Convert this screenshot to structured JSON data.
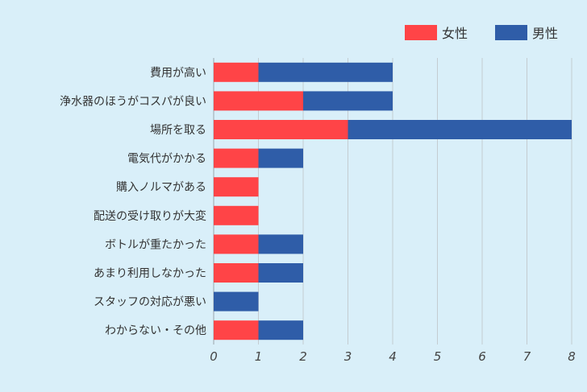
{
  "chart_data": {
    "type": "bar",
    "orientation": "horizontal",
    "stacked": true,
    "categories": [
      "費用が高い",
      "浄水器のほうがコスパが良い",
      "場所を取る",
      "電気代がかかる",
      "購入ノルマがある",
      "配送の受け取りが大変",
      "ボトルが重たかった",
      "あまり利用しなかった",
      "スタッフの対応が悪い",
      "わからない・その他"
    ],
    "series": [
      {
        "name": "女性",
        "color": "#ff4447",
        "values": [
          1,
          2,
          3,
          1,
          1,
          1,
          1,
          1,
          0,
          1
        ]
      },
      {
        "name": "男性",
        "color": "#2f5da8",
        "values": [
          3,
          2,
          5,
          1,
          0,
          0,
          1,
          1,
          1,
          1
        ]
      }
    ],
    "xlim": [
      0,
      8
    ],
    "xticks": [
      "0",
      "1",
      "2",
      "3",
      "4",
      "5",
      "6",
      "7",
      "8"
    ],
    "grid": true,
    "legend_position": "top-right",
    "title": "",
    "xlabel": "",
    "ylabel": ""
  }
}
